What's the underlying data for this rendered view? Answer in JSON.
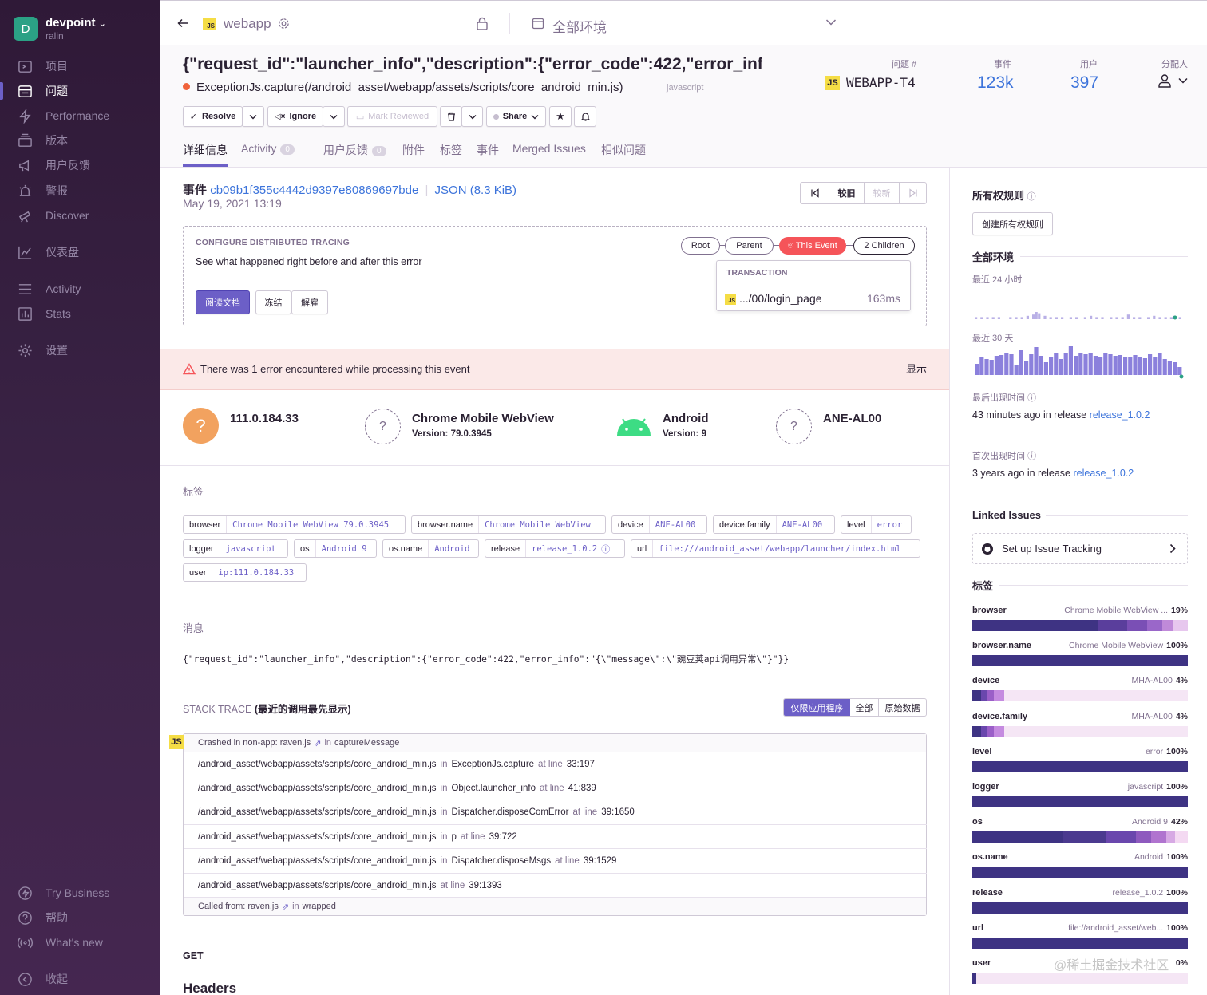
{
  "sidebar": {
    "org_initial": "D",
    "org_name": "devpoint",
    "org_user": "ralin",
    "items": [
      {
        "label": "项目"
      },
      {
        "label": "问题"
      },
      {
        "label": "Performance"
      },
      {
        "label": "版本"
      },
      {
        "label": "用户反馈"
      },
      {
        "label": "警报"
      },
      {
        "label": "Discover"
      },
      {
        "label": "仪表盘"
      },
      {
        "label": "Activity"
      },
      {
        "label": "Stats"
      },
      {
        "label": "设置"
      }
    ],
    "bottom": [
      {
        "label": "Try Business"
      },
      {
        "label": "帮助"
      },
      {
        "label": "What's new"
      },
      {
        "label": "收起"
      }
    ]
  },
  "topbar": {
    "platform_badge": "JS",
    "project": "webapp",
    "environment": "全部环境"
  },
  "issue": {
    "title": "{\"request_id\":\"launcher_info\",\"description\":{\"error_code\":422,\"error_inf...",
    "culprit": "ExceptionJs.capture(/android_asset/webapp/assets/scripts/core_android_min.js)",
    "platform": "javascript",
    "stats": {
      "issue_label": "问题 #",
      "issue_id": "WEBAPP-T4",
      "events_label": "事件",
      "events": "123k",
      "users_label": "用户",
      "users": "397",
      "assignee_label": "分配人"
    }
  },
  "actions": {
    "resolve": "Resolve",
    "ignore": "Ignore",
    "mark_reviewed": "Mark Reviewed",
    "share": "Share"
  },
  "tabs": [
    {
      "label": "详细信息"
    },
    {
      "label": "Activity",
      "badge": "0"
    },
    {
      "label": "用户反馈",
      "badge": "0"
    },
    {
      "label": "附件"
    },
    {
      "label": "标签"
    },
    {
      "label": "事件"
    },
    {
      "label": "Merged Issues"
    },
    {
      "label": "相似问题"
    }
  ],
  "event": {
    "prefix": "事件",
    "id": "cb09b1f355c4442d9397e80869697bde",
    "json": "JSON (8.3 KiB)",
    "date": "May 19, 2021 13:19",
    "nav_older": "较旧",
    "nav_newer": "较新"
  },
  "tracing": {
    "heading": "CONFIGURE DISTRIBUTED TRACING",
    "text": "See what happened right before and after this error",
    "read_docs": "阅读文档",
    "snooze": "冻结",
    "dismiss": "解雇",
    "chain": [
      "Root",
      "Parent",
      "This Event",
      "2 Children"
    ],
    "transaction_label": "TRANSACTION",
    "transaction": ".../00/login_page",
    "duration": "163ms"
  },
  "alert": {
    "text": "There was 1 error encountered while processing this event",
    "action": "显示"
  },
  "context": [
    {
      "title": "111.0.184.33",
      "sub": ""
    },
    {
      "title": "Chrome Mobile WebView",
      "sub": "Version: 79.0.3945"
    },
    {
      "title": "Android",
      "sub": "Version: 9"
    },
    {
      "title": "ANE-AL00",
      "sub": ""
    }
  ],
  "tags_section": {
    "heading": "标签",
    "tags": [
      {
        "k": "browser",
        "v": "Chrome Mobile WebView 79.0.3945"
      },
      {
        "k": "browser.name",
        "v": "Chrome Mobile WebView"
      },
      {
        "k": "device",
        "v": "ANE-AL00"
      },
      {
        "k": "device.family",
        "v": "ANE-AL00"
      },
      {
        "k": "level",
        "v": "error"
      },
      {
        "k": "logger",
        "v": "javascript"
      },
      {
        "k": "os",
        "v": "Android 9"
      },
      {
        "k": "os.name",
        "v": "Android"
      },
      {
        "k": "release",
        "v": "release_1.0.2"
      },
      {
        "k": "url",
        "v": "file:///android_asset/webapp/launcher/index.html"
      },
      {
        "k": "user",
        "v": "ip:111.0.184.33"
      }
    ]
  },
  "message": {
    "heading": "消息",
    "text": "{\"request_id\":\"launcher_info\",\"description\":{\"error_code\":422,\"error_info\":\"{\\\"message\\\":\\\"豌豆荚api调用异常\\\"}\"}}"
  },
  "stack": {
    "heading": "STACK TRACE",
    "sub": "(最近的调用最先显示)",
    "toggles": [
      "仅限应用程序",
      "全部",
      "原始数据"
    ],
    "crashed_prefix": "Crashed in non-app: raven.js",
    "crashed_in": "in",
    "crashed_fn": "captureMessage",
    "frames": [
      {
        "file": "/android_asset/webapp/assets/scripts/core_android_min.js",
        "in": "in",
        "fn": "ExceptionJs.capture",
        "at": "at line",
        "line": "33:197"
      },
      {
        "file": "/android_asset/webapp/assets/scripts/core_android_min.js",
        "in": "in",
        "fn": "Object.launcher_info",
        "at": "at line",
        "line": "41:839"
      },
      {
        "file": "/android_asset/webapp/assets/scripts/core_android_min.js",
        "in": "in",
        "fn": "Dispatcher.disposeComError",
        "at": "at line",
        "line": "39:1650"
      },
      {
        "file": "/android_asset/webapp/assets/scripts/core_android_min.js",
        "in": "in",
        "fn": "p",
        "at": "at line",
        "line": "39:722"
      },
      {
        "file": "/android_asset/webapp/assets/scripts/core_android_min.js",
        "in": "in",
        "fn": "Dispatcher.disposeMsgs",
        "at": "at line",
        "line": "39:1529"
      },
      {
        "file": "/android_asset/webapp/assets/scripts/core_android_min.js",
        "in": "",
        "fn": "",
        "at": "at line",
        "line": "39:1393"
      }
    ],
    "called_prefix": "Called from: raven.js",
    "called_in": "in",
    "called_fn": "wrapped"
  },
  "request": {
    "method": "GET",
    "headers": "Headers"
  },
  "right": {
    "ownership": "所有权规则",
    "create_rule": "创建所有权规则",
    "env": "全部环境",
    "last24": "最近 24 小时",
    "last30": "最近 30 天",
    "last_seen_label": "最后出现时间",
    "last_seen": "43 minutes ago",
    "in_release": "in release",
    "last_release": "release_1.0.2",
    "first_seen_label": "首次出现时间",
    "first_seen": "3 years ago",
    "first_release": "release_1.0.2",
    "linked": "Linked Issues",
    "tracking": "Set up Issue Tracking",
    "tags": "标签",
    "tag_bars": [
      {
        "k": "browser",
        "v": "Chrome Mobile WebView ...",
        "p": "19%"
      },
      {
        "k": "browser.name",
        "v": "Chrome Mobile WebView",
        "p": "100%"
      },
      {
        "k": "device",
        "v": "MHA-AL00",
        "p": "4%"
      },
      {
        "k": "device.family",
        "v": "MHA-AL00",
        "p": "4%"
      },
      {
        "k": "level",
        "v": "error",
        "p": "100%"
      },
      {
        "k": "logger",
        "v": "javascript",
        "p": "100%"
      },
      {
        "k": "os",
        "v": "Android 9",
        "p": "42%"
      },
      {
        "k": "os.name",
        "v": "Android",
        "p": "100%"
      },
      {
        "k": "release",
        "v": "release_1.0.2",
        "p": "100%"
      },
      {
        "k": "url",
        "v": "file://android_asset/web...",
        "p": "100%"
      },
      {
        "k": "user",
        "v": "",
        "p": "0%"
      }
    ]
  },
  "watermark": "@稀土掘金技术社区",
  "colors": {
    "sidebar": "#2f1937",
    "accent": "#6c5fc7",
    "link": "#3d74db",
    "bar": "#3e3383",
    "error": "#f55459"
  }
}
